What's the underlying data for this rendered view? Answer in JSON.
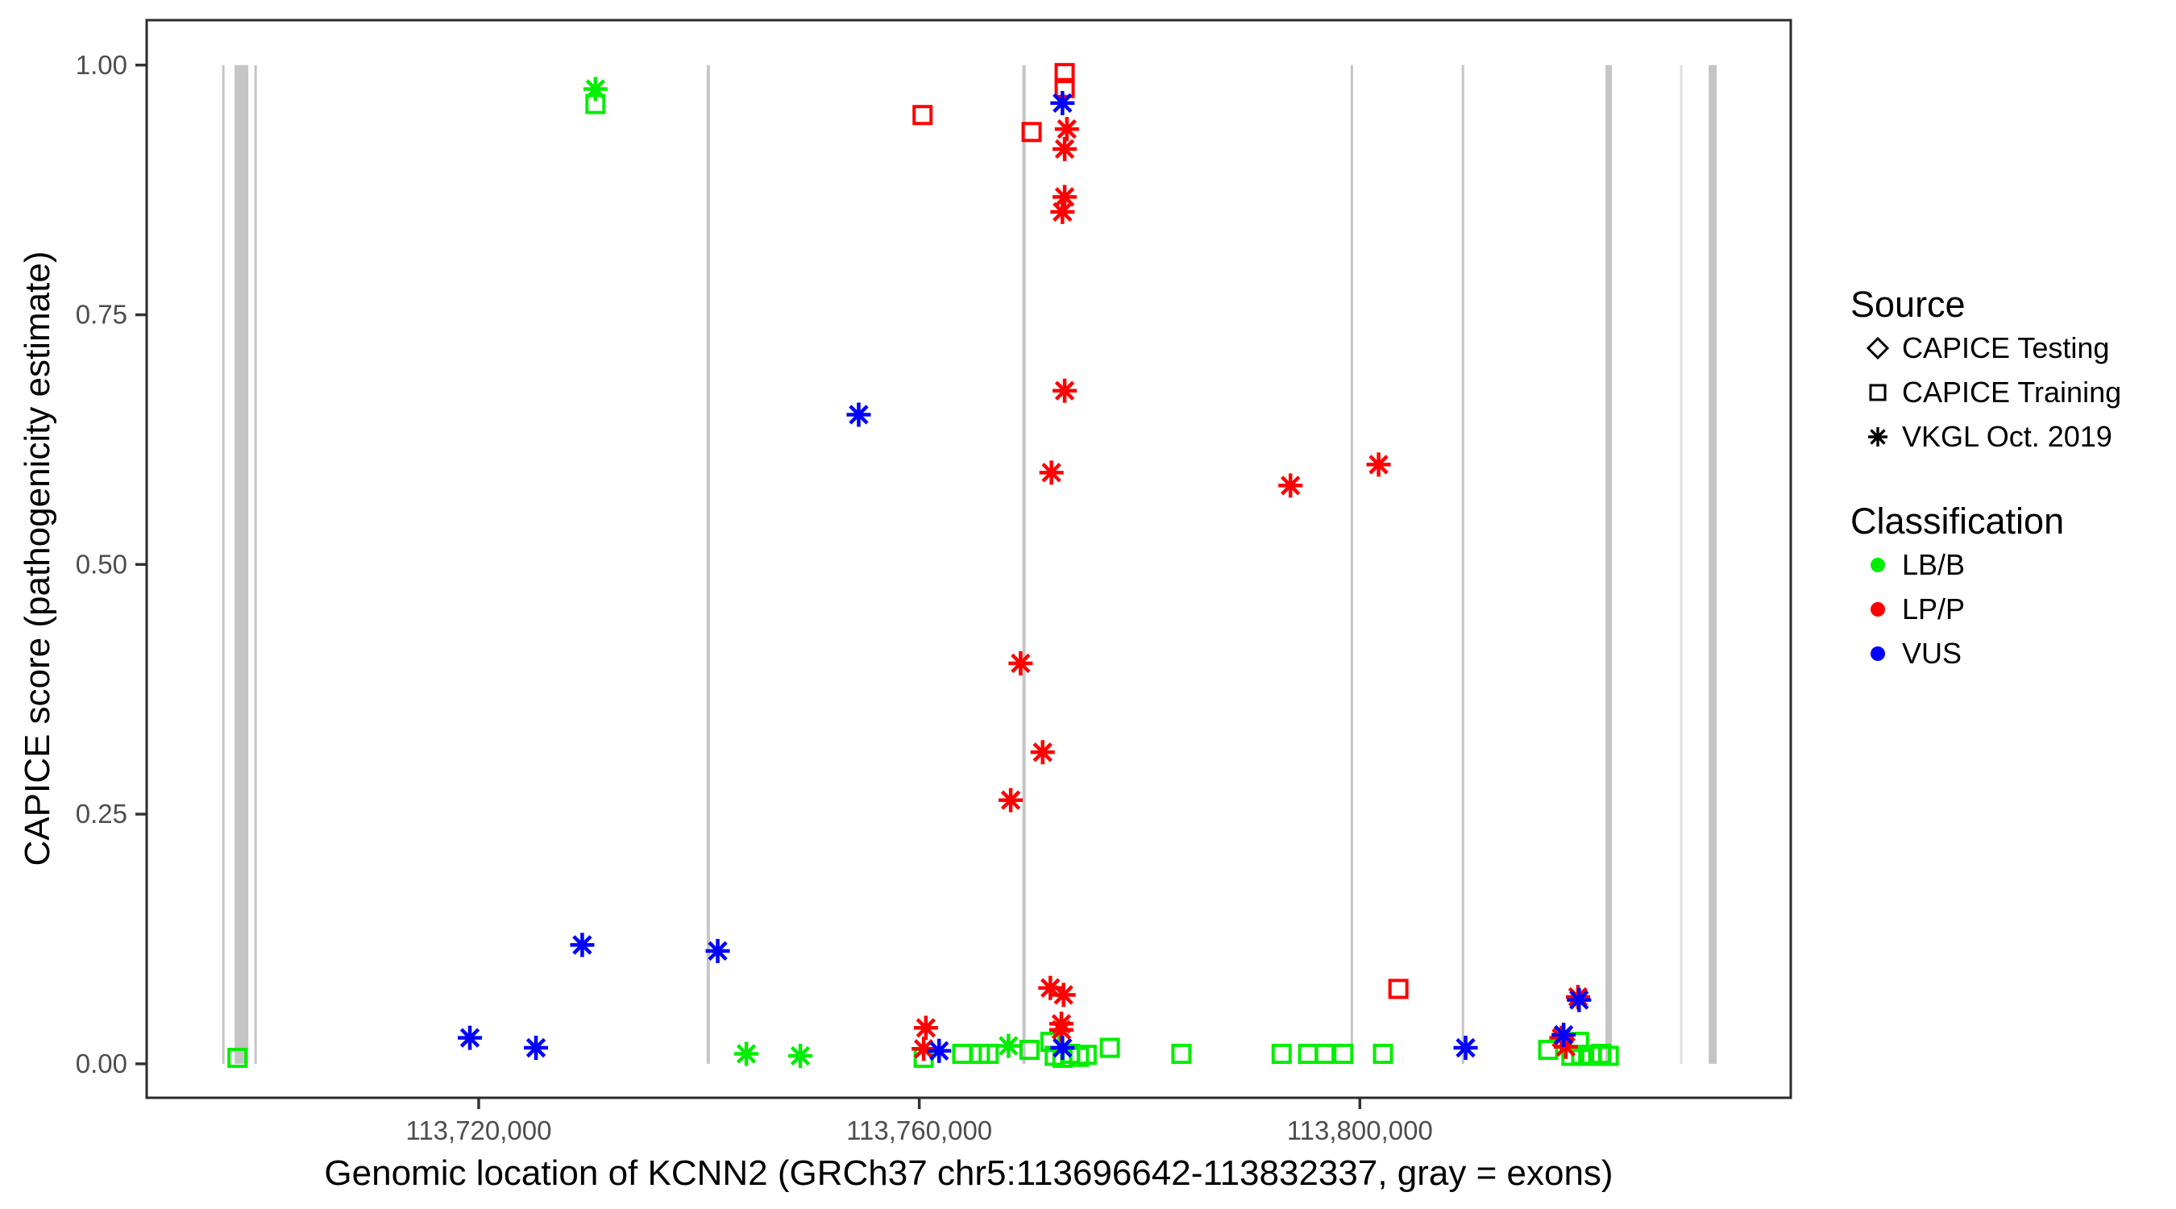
{
  "axes": {
    "tick_text_color": "#4D4D4D",
    "tick_mark_color": "#333333",
    "panel_border_color": "#2B2B2B",
    "background": "#FFFFFF"
  },
  "legend": {
    "source_title": "Source",
    "source_items": [
      {
        "label": "CAPICE Testing",
        "shape": "diamond"
      },
      {
        "label": "CAPICE Training",
        "shape": "square"
      },
      {
        "label": "VKGL Oct. 2019",
        "shape": "asterisk"
      }
    ],
    "classification_title": "Classification",
    "classification_items": [
      {
        "label": "LB/B",
        "color": "#00EE00"
      },
      {
        "label": "LP/P",
        "color": "#FF0000"
      },
      {
        "label": "VUS",
        "color": "#0000FF"
      }
    ]
  },
  "chart_data": {
    "type": "scatter",
    "title": "",
    "xlabel": "Genomic location of KCNN2 (GRCh37 chr5:113696642-113832337, gray = exons)",
    "ylabel": "CAPICE score (pathogenicity estimate)",
    "x_domain": [
      113689857,
      113839122
    ],
    "y_domain": [
      -0.034,
      1.045
    ],
    "grid": false,
    "legend_position": "right",
    "x_ticks": [
      {
        "value": 113720000,
        "label": "113,720,000"
      },
      {
        "value": 113760000,
        "label": "113,760,000"
      },
      {
        "value": 113800000,
        "label": "113,800,000"
      }
    ],
    "y_ticks": [
      {
        "value": 0.0,
        "label": "0.00"
      },
      {
        "value": 0.25,
        "label": "0.25"
      },
      {
        "value": 0.5,
        "label": "0.50"
      },
      {
        "value": 0.75,
        "label": "0.75"
      },
      {
        "value": 1.0,
        "label": "1.00"
      }
    ],
    "exon_color": "#C5C5C5",
    "exon_faint_color": "#DFDFDF",
    "exons": [
      {
        "start": 113696710,
        "end": 113696930,
        "faint": false
      },
      {
        "start": 113697840,
        "end": 113699090,
        "faint": false
      },
      {
        "start": 113699640,
        "end": 113699860,
        "faint": false
      },
      {
        "start": 113740700,
        "end": 113740990,
        "faint": false
      },
      {
        "start": 113769360,
        "end": 113769660,
        "faint": false
      },
      {
        "start": 113799160,
        "end": 113799380,
        "faint": false
      },
      {
        "start": 113809250,
        "end": 113809470,
        "faint": false
      },
      {
        "start": 113822300,
        "end": 113822890,
        "faint": false
      },
      {
        "start": 113829070,
        "end": 113829210,
        "faint": true
      },
      {
        "start": 113831670,
        "end": 113832400,
        "faint": false
      }
    ],
    "shape_by_source": {
      "CAPICE Testing": "diamond",
      "CAPICE Training": "square",
      "VKGL Oct. 2019": "asterisk"
    },
    "color_by_classification": {
      "LB/B": "#00EE00",
      "LP/P": "#FF0000",
      "VUS": "#0000FF"
    },
    "points": [
      {
        "pos": 113698100,
        "score": 0.006,
        "source": "CAPICE Training",
        "classification": "LB/B"
      },
      {
        "pos": 113730600,
        "score": 0.976,
        "source": "VKGL Oct. 2019",
        "classification": "LB/B"
      },
      {
        "pos": 113730600,
        "score": 0.961,
        "source": "CAPICE Training",
        "classification": "LB/B"
      },
      {
        "pos": 113744300,
        "score": 0.01,
        "source": "VKGL Oct. 2019",
        "classification": "LB/B"
      },
      {
        "pos": 113749200,
        "score": 0.008,
        "source": "VKGL Oct. 2019",
        "classification": "LB/B"
      },
      {
        "pos": 113760400,
        "score": 0.006,
        "source": "CAPICE Training",
        "classification": "LB/B"
      },
      {
        "pos": 113763900,
        "score": 0.01,
        "source": "CAPICE Training",
        "classification": "LB/B"
      },
      {
        "pos": 113765500,
        "score": 0.01,
        "source": "CAPICE Training",
        "classification": "LB/B"
      },
      {
        "pos": 113766300,
        "score": 0.01,
        "source": "CAPICE Training",
        "classification": "LB/B"
      },
      {
        "pos": 113768100,
        "score": 0.018,
        "source": "VKGL Oct. 2019",
        "classification": "LB/B"
      },
      {
        "pos": 113770000,
        "score": 0.014,
        "source": "CAPICE Training",
        "classification": "LB/B"
      },
      {
        "pos": 113771900,
        "score": 0.022,
        "source": "CAPICE Training",
        "classification": "LB/B"
      },
      {
        "pos": 113772300,
        "score": 0.008,
        "source": "CAPICE Training",
        "classification": "LB/B"
      },
      {
        "pos": 113773000,
        "score": 0.006,
        "source": "CAPICE Training",
        "classification": "LB/B"
      },
      {
        "pos": 113773700,
        "score": 0.01,
        "source": "CAPICE Training",
        "classification": "LB/B"
      },
      {
        "pos": 113774500,
        "score": 0.007,
        "source": "CAPICE Training",
        "classification": "LB/B"
      },
      {
        "pos": 113775200,
        "score": 0.009,
        "source": "CAPICE Training",
        "classification": "LB/B"
      },
      {
        "pos": 113777300,
        "score": 0.016,
        "source": "CAPICE Training",
        "classification": "LB/B"
      },
      {
        "pos": 113783800,
        "score": 0.01,
        "source": "CAPICE Training",
        "classification": "LB/B"
      },
      {
        "pos": 113792900,
        "score": 0.01,
        "source": "CAPICE Training",
        "classification": "LB/B"
      },
      {
        "pos": 113795300,
        "score": 0.01,
        "source": "CAPICE Training",
        "classification": "LB/B"
      },
      {
        "pos": 113796800,
        "score": 0.01,
        "source": "CAPICE Training",
        "classification": "LB/B"
      },
      {
        "pos": 113798500,
        "score": 0.01,
        "source": "CAPICE Training",
        "classification": "LB/B"
      },
      {
        "pos": 113802100,
        "score": 0.01,
        "source": "CAPICE Training",
        "classification": "LB/B"
      },
      {
        "pos": 113817100,
        "score": 0.014,
        "source": "CAPICE Training",
        "classification": "LB/B"
      },
      {
        "pos": 113819200,
        "score": 0.008,
        "source": "CAPICE Training",
        "classification": "LB/B"
      },
      {
        "pos": 113819900,
        "score": 0.022,
        "source": "CAPICE Training",
        "classification": "LB/B"
      },
      {
        "pos": 113820100,
        "score": 0.009,
        "source": "CAPICE Training",
        "classification": "LB/B"
      },
      {
        "pos": 113821000,
        "score": 0.008,
        "source": "CAPICE Training",
        "classification": "LB/B"
      },
      {
        "pos": 113821900,
        "score": 0.01,
        "source": "CAPICE Training",
        "classification": "LB/B"
      },
      {
        "pos": 113822600,
        "score": 0.008,
        "source": "CAPICE Training",
        "classification": "LB/B"
      },
      {
        "pos": 113760300,
        "score": 0.95,
        "source": "CAPICE Training",
        "classification": "LP/P"
      },
      {
        "pos": 113770200,
        "score": 0.933,
        "source": "CAPICE Training",
        "classification": "LP/P"
      },
      {
        "pos": 113773200,
        "score": 0.992,
        "source": "CAPICE Training",
        "classification": "LP/P"
      },
      {
        "pos": 113773200,
        "score": 0.977,
        "source": "CAPICE Training",
        "classification": "LP/P"
      },
      {
        "pos": 113803500,
        "score": 0.075,
        "source": "CAPICE Training",
        "classification": "LP/P"
      },
      {
        "pos": 113773400,
        "score": 0.936,
        "source": "VKGL Oct. 2019",
        "classification": "LP/P"
      },
      {
        "pos": 113773200,
        "score": 0.916,
        "source": "VKGL Oct. 2019",
        "classification": "LP/P"
      },
      {
        "pos": 113773200,
        "score": 0.868,
        "source": "VKGL Oct. 2019",
        "classification": "LP/P"
      },
      {
        "pos": 113773000,
        "score": 0.853,
        "source": "VKGL Oct. 2019",
        "classification": "LP/P"
      },
      {
        "pos": 113773200,
        "score": 0.674,
        "source": "VKGL Oct. 2019",
        "classification": "LP/P"
      },
      {
        "pos": 113772000,
        "score": 0.592,
        "source": "VKGL Oct. 2019",
        "classification": "LP/P"
      },
      {
        "pos": 113769200,
        "score": 0.401,
        "source": "VKGL Oct. 2019",
        "classification": "LP/P"
      },
      {
        "pos": 113771200,
        "score": 0.312,
        "source": "VKGL Oct. 2019",
        "classification": "LP/P"
      },
      {
        "pos": 113768300,
        "score": 0.264,
        "source": "VKGL Oct. 2019",
        "classification": "LP/P"
      },
      {
        "pos": 113793700,
        "score": 0.579,
        "source": "VKGL Oct. 2019",
        "classification": "LP/P"
      },
      {
        "pos": 113801700,
        "score": 0.6,
        "source": "VKGL Oct. 2019",
        "classification": "LP/P"
      },
      {
        "pos": 113771900,
        "score": 0.076,
        "source": "VKGL Oct. 2019",
        "classification": "LP/P"
      },
      {
        "pos": 113773100,
        "score": 0.069,
        "source": "VKGL Oct. 2019",
        "classification": "LP/P"
      },
      {
        "pos": 113772900,
        "score": 0.04,
        "source": "VKGL Oct. 2019",
        "classification": "LP/P"
      },
      {
        "pos": 113772900,
        "score": 0.034,
        "source": "VKGL Oct. 2019",
        "classification": "LP/P"
      },
      {
        "pos": 113760600,
        "score": 0.036,
        "source": "VKGL Oct. 2019",
        "classification": "LP/P"
      },
      {
        "pos": 113760400,
        "score": 0.015,
        "source": "VKGL Oct. 2019",
        "classification": "LP/P"
      },
      {
        "pos": 113819800,
        "score": 0.067,
        "source": "VKGL Oct. 2019",
        "classification": "LP/P"
      },
      {
        "pos": 113818300,
        "score": 0.026,
        "source": "VKGL Oct. 2019",
        "classification": "LP/P"
      },
      {
        "pos": 113818700,
        "score": 0.017,
        "source": "VKGL Oct. 2019",
        "classification": "LP/P"
      },
      {
        "pos": 113773000,
        "score": 0.962,
        "source": "VKGL Oct. 2019",
        "classification": "VUS"
      },
      {
        "pos": 113754500,
        "score": 0.65,
        "source": "VKGL Oct. 2019",
        "classification": "VUS"
      },
      {
        "pos": 113729400,
        "score": 0.119,
        "source": "VKGL Oct. 2019",
        "classification": "VUS"
      },
      {
        "pos": 113741700,
        "score": 0.113,
        "source": "VKGL Oct. 2019",
        "classification": "VUS"
      },
      {
        "pos": 113719200,
        "score": 0.026,
        "source": "VKGL Oct. 2019",
        "classification": "VUS"
      },
      {
        "pos": 113725200,
        "score": 0.016,
        "source": "VKGL Oct. 2019",
        "classification": "VUS"
      },
      {
        "pos": 113761800,
        "score": 0.013,
        "source": "VKGL Oct. 2019",
        "classification": "VUS"
      },
      {
        "pos": 113773000,
        "score": 0.016,
        "source": "VKGL Oct. 2019",
        "classification": "VUS"
      },
      {
        "pos": 113809600,
        "score": 0.016,
        "source": "VKGL Oct. 2019",
        "classification": "VUS"
      },
      {
        "pos": 113818500,
        "score": 0.029,
        "source": "VKGL Oct. 2019",
        "classification": "VUS"
      },
      {
        "pos": 113819900,
        "score": 0.064,
        "source": "VKGL Oct. 2019",
        "classification": "VUS"
      }
    ]
  }
}
